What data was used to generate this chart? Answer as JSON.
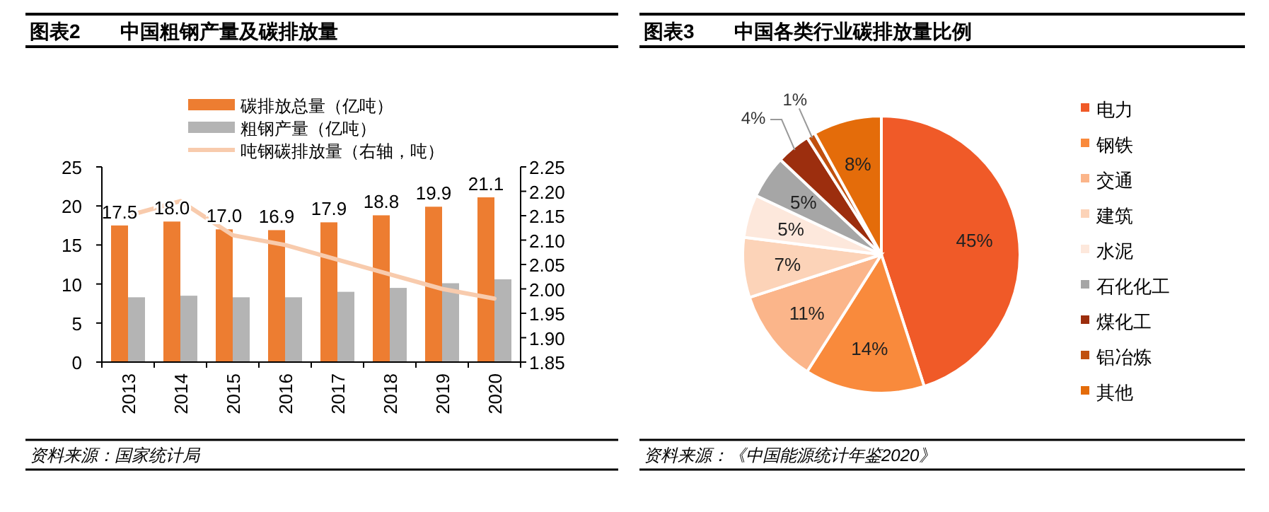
{
  "chart_data": [
    {
      "type": "bar",
      "title": "图表2　　中国粗钢产量及碳排放量",
      "categories": [
        "2013",
        "2014",
        "2015",
        "2016",
        "2017",
        "2018",
        "2019",
        "2020"
      ],
      "series": [
        {
          "name": "碳排放总量（亿吨）",
          "color": "#ed7d31",
          "values": [
            17.5,
            18.0,
            17.0,
            16.9,
            17.9,
            18.8,
            19.9,
            21.1
          ],
          "value_labels": [
            "17.5",
            "18.0",
            "17.0",
            "16.9",
            "17.9",
            "18.8",
            "19.9",
            "21.1"
          ]
        },
        {
          "name": "粗钢产量（亿吨）",
          "color": "#b4b4b4",
          "values": [
            8.3,
            8.5,
            8.3,
            8.3,
            9.0,
            9.5,
            10.1,
            10.6
          ]
        },
        {
          "name": "吨钢碳排放量（右轴，吨）",
          "type": "line",
          "axis": "y2",
          "color": "#f8cbad",
          "values": [
            2.15,
            2.18,
            2.11,
            2.09,
            2.06,
            2.03,
            2.0,
            1.98
          ]
        }
      ],
      "ylim": [
        0,
        25
      ],
      "yticks": [
        0,
        5,
        10,
        15,
        20,
        25
      ],
      "y2lim": [
        1.85,
        2.25
      ],
      "y2ticks": [
        {
          "value": 1.85,
          "label": "1.85"
        },
        {
          "value": 1.9,
          "label": "1.90"
        },
        {
          "value": 1.95,
          "label": "1.95"
        },
        {
          "value": 2.0,
          "label": "2.00"
        },
        {
          "value": 2.05,
          "label": "2.05"
        },
        {
          "value": 2.1,
          "label": "2.10"
        },
        {
          "value": 2.15,
          "label": "2.15"
        },
        {
          "value": 2.2,
          "label": "2.20"
        },
        {
          "value": 2.25,
          "label": "2.25"
        }
      ],
      "legend": "top",
      "annotations": [
        "资料来源：国家统计局"
      ]
    },
    {
      "type": "pie",
      "title": "图表3　　中国各类行业碳排放量比例",
      "categories": [
        "电力",
        "钢铁",
        "交通",
        "建筑",
        "水泥",
        "石化化工",
        "煤化工",
        "铝冶炼",
        "其他"
      ],
      "values": [
        45,
        14,
        11,
        7,
        5,
        5,
        4,
        1,
        8
      ],
      "colors": [
        "#f05a28",
        "#f98a3c",
        "#fbb58a",
        "#fcd3b8",
        "#fde8dc",
        "#a6a6a6",
        "#9c2e0e",
        "#c0500f",
        "#e46c0a"
      ],
      "value_labels": [
        "45%",
        "14%",
        "11%",
        "7%",
        "5%",
        "5%",
        "4%",
        "1%",
        "8%"
      ],
      "legend": "right",
      "annotations": [
        "资料来源：《中国能源统计年鉴2020》"
      ]
    }
  ]
}
